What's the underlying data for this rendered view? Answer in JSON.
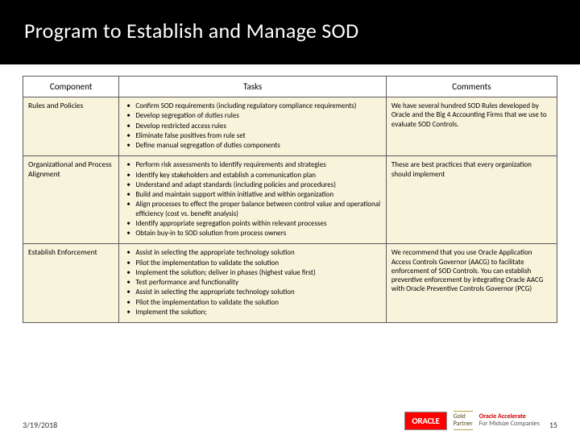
{
  "title": "Program to Establish and Manage SOD",
  "columns": {
    "component": "Component",
    "tasks": "Tasks",
    "comments": "Comments"
  },
  "col_widths": {
    "component": "18%",
    "tasks": "50%",
    "comments": "32%"
  },
  "rows": [
    {
      "component": "Rules and Policies",
      "tasks": [
        "Confirm SOD requirements (including regulatory compliance requirements)",
        "Develop segregation of duties rules",
        "Develop restricted access rules",
        "Eliminate false positives from rule set",
        "Define manual segregation of duties components"
      ],
      "comments": "We have several hundred SOD Rules developed by Oracle and the Big 4 Accounting Firms that we use to evaluate SOD Controls."
    },
    {
      "component": "Organizational and Process Alignment",
      "tasks": [
        "Perform risk assessments to identify requirements and strategies",
        "Identify key stakeholders and establish a communication plan",
        "Understand and adapt standards (including policies and procedures)",
        "Build and maintain support within initiative and within organization",
        "Align processes to effect the proper balance between control value and operational efficiency (cost vs. benefit analysis)",
        "Identify appropriate segregation points within relevant processes",
        "Obtain buy-in to SOD solution from process owners"
      ],
      "comments": "These are best practices that every organization should implement"
    },
    {
      "component": "Establish Enforcement",
      "tasks": [
        "Assist in selecting the appropriate technology solution",
        "Pilot the implementation to validate the solution",
        "Implement the solution; deliver in phases (highest value first)",
        "Test performance and functionality",
        "Assist in selecting the appropriate technology solution",
        "Pilot the implementation to validate the solution",
        "Implement the solution;"
      ],
      "comments": "We recommend that you use Oracle Application Access Controls Governor (AACG) to facilitate enforcement of SOD Controls.  You can establish preventive enforcement by integrating Oracle AACG with Oracle Preventive Controls Governor (PCG)"
    }
  ],
  "footer": {
    "date": "3/19/2018",
    "page": "15",
    "oracle": "ORACLE",
    "gold": "Gold",
    "partner": "Partner",
    "accelerate_top": "Oracle Accelerate",
    "accelerate_sub": "For Midsize Companies"
  },
  "colors": {
    "title_bg": "#000000",
    "cell_bg": "#f8f4db",
    "border": "#5a5a5a",
    "oracle_red": "#ff0000"
  }
}
